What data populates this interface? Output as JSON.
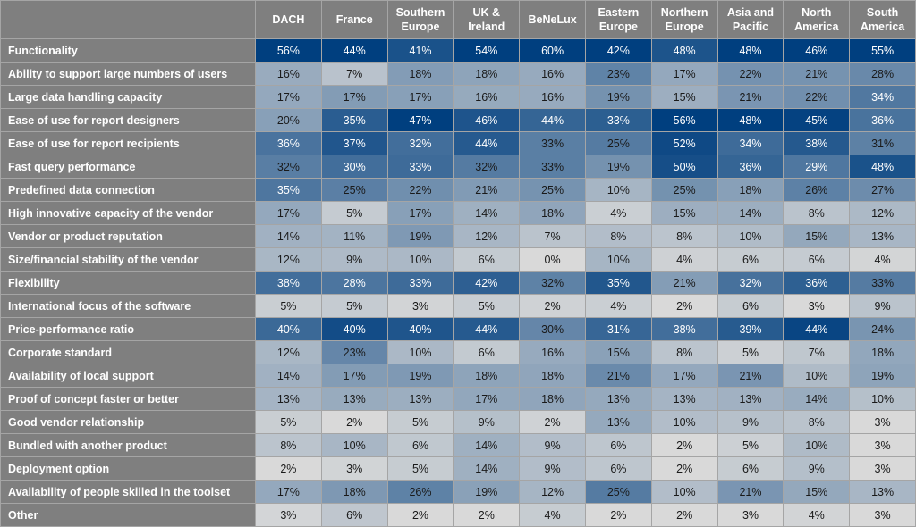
{
  "chart_data": {
    "type": "heatmap",
    "color_scale": {
      "low": "#d9d9d9",
      "high": "#003f7f",
      "scale": "per-column"
    },
    "columns": [
      "DACH",
      "France",
      "Southern Europe",
      "UK & Ireland",
      "BeNeLux",
      "Eastern Europe",
      "Northern Europe",
      "Asia and Pacific",
      "North America",
      "South America"
    ],
    "rows": [
      {
        "label": "Functionality",
        "values": [
          56,
          44,
          41,
          54,
          60,
          42,
          48,
          48,
          46,
          55
        ]
      },
      {
        "label": "Ability to support large numbers of users",
        "values": [
          16,
          7,
          18,
          18,
          16,
          23,
          17,
          22,
          21,
          28
        ]
      },
      {
        "label": "Large data handling capacity",
        "values": [
          17,
          17,
          17,
          16,
          16,
          19,
          15,
          21,
          22,
          34
        ]
      },
      {
        "label": "Ease of use for report designers",
        "values": [
          20,
          35,
          47,
          46,
          44,
          33,
          56,
          48,
          45,
          36
        ]
      },
      {
        "label": "Ease of use for report recipients",
        "values": [
          36,
          37,
          32,
          44,
          33,
          25,
          52,
          34,
          38,
          31
        ]
      },
      {
        "label": "Fast query performance",
        "values": [
          32,
          30,
          33,
          32,
          33,
          19,
          50,
          36,
          29,
          48
        ]
      },
      {
        "label": "Predefined data connection",
        "values": [
          35,
          25,
          22,
          21,
          25,
          10,
          25,
          18,
          26,
          27
        ]
      },
      {
        "label": "High innovative capacity of the vendor",
        "values": [
          17,
          5,
          17,
          14,
          18,
          4,
          15,
          14,
          8,
          12
        ]
      },
      {
        "label": "Vendor or product reputation",
        "values": [
          14,
          11,
          19,
          12,
          7,
          8,
          8,
          10,
          15,
          13
        ]
      },
      {
        "label": "Size/financial stability of the vendor",
        "values": [
          12,
          9,
          10,
          6,
          0,
          10,
          4,
          6,
          6,
          4
        ]
      },
      {
        "label": "Flexibility",
        "values": [
          38,
          28,
          33,
          42,
          32,
          35,
          21,
          32,
          36,
          33
        ]
      },
      {
        "label": "International focus of the software",
        "values": [
          5,
          5,
          3,
          5,
          2,
          4,
          2,
          6,
          3,
          9
        ]
      },
      {
        "label": "Price-performance ratio",
        "values": [
          40,
          40,
          40,
          44,
          30,
          31,
          38,
          39,
          44,
          24
        ]
      },
      {
        "label": "Corporate standard",
        "values": [
          12,
          23,
          10,
          6,
          16,
          15,
          8,
          5,
          7,
          18
        ]
      },
      {
        "label": "Availability of local support",
        "values": [
          14,
          17,
          19,
          18,
          18,
          21,
          17,
          21,
          10,
          19
        ]
      },
      {
        "label": "Proof of concept faster or better",
        "values": [
          13,
          13,
          13,
          17,
          18,
          13,
          13,
          13,
          14,
          10
        ]
      },
      {
        "label": "Good vendor relationship",
        "values": [
          5,
          2,
          5,
          9,
          2,
          13,
          10,
          9,
          8,
          3
        ]
      },
      {
        "label": "Bundled with another product",
        "values": [
          8,
          10,
          6,
          14,
          9,
          6,
          2,
          5,
          10,
          3
        ]
      },
      {
        "label": "Deployment option",
        "values": [
          2,
          3,
          5,
          14,
          9,
          6,
          2,
          6,
          9,
          3
        ]
      },
      {
        "label": "Availability of people skilled in the toolset",
        "values": [
          17,
          18,
          26,
          19,
          12,
          25,
          10,
          21,
          15,
          13
        ]
      },
      {
        "label": "Other",
        "values": [
          3,
          6,
          2,
          2,
          4,
          2,
          2,
          3,
          4,
          3
        ]
      }
    ]
  }
}
